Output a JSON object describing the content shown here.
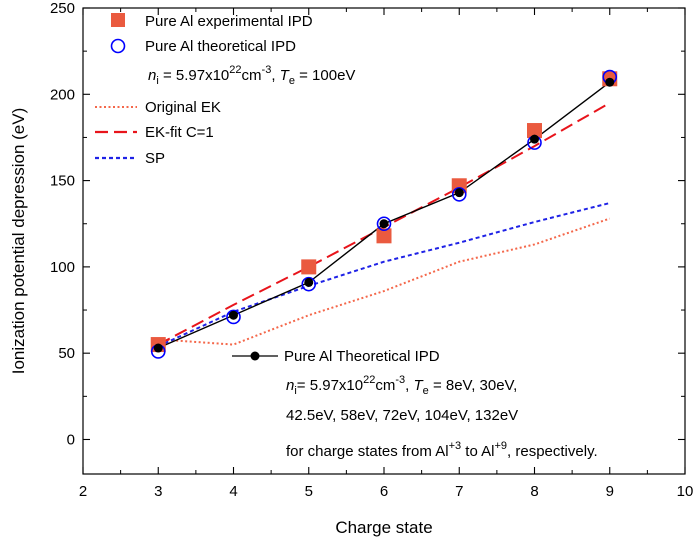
{
  "chart_data": {
    "type": "scatter",
    "title": "",
    "xlabel": "Charge state",
    "ylabel": "Ionization potential depression (eV)",
    "xlim": [
      2,
      10
    ],
    "ylim": [
      -20,
      250
    ],
    "xticks": [
      2,
      3,
      4,
      5,
      6,
      7,
      8,
      9,
      10
    ],
    "yticks": [
      0,
      50,
      100,
      150,
      200,
      250
    ],
    "grid": false,
    "legend_position": "top-left",
    "series": [
      {
        "name": "Pure Al experimental IPD",
        "kind": "marker",
        "marker": "square",
        "color": "#ea5a3f",
        "x": [
          3,
          5,
          6,
          7,
          8,
          9
        ],
        "y": [
          55,
          100,
          118,
          147,
          179,
          209
        ]
      },
      {
        "name": "Pure Al theoretical IPD",
        "kind": "marker",
        "marker": "open-circle",
        "color": "#0000ff",
        "x": [
          3,
          4,
          5,
          6,
          7,
          8,
          9
        ],
        "y": [
          51,
          71,
          90,
          125,
          142,
          172,
          210
        ]
      },
      {
        "name": "Original EK",
        "kind": "line",
        "style": "dotted",
        "color": "#f4674a",
        "x": [
          3,
          4,
          5,
          6,
          7,
          8,
          9
        ],
        "y": [
          58,
          55,
          72,
          86,
          103,
          113,
          128
        ]
      },
      {
        "name": "EK-fit C=1",
        "kind": "line",
        "style": "dashed",
        "color": "#e8141b",
        "x": [
          3,
          4,
          5,
          6,
          7,
          8,
          9
        ],
        "y": [
          55,
          78,
          100,
          123,
          146,
          170,
          195
        ]
      },
      {
        "name": "SP",
        "kind": "line",
        "style": "short-dash",
        "color": "#1f22e6",
        "x": [
          3,
          4,
          5,
          6,
          7,
          8,
          9
        ],
        "y": [
          54,
          74,
          89,
          103,
          114,
          126,
          137
        ]
      },
      {
        "name": "Pure Al Theoretical IPD",
        "kind": "line-marker",
        "marker": "filled-circle",
        "color": "#000000",
        "x": [
          3,
          4,
          5,
          6,
          7,
          8,
          9
        ],
        "y": [
          53,
          72,
          91,
          125,
          143,
          174,
          207
        ]
      }
    ],
    "annotations": {
      "top_params": {
        "n_sym": "n",
        "n_sub": "i",
        "n_val": " = 5.97x10",
        "n_exp": "22",
        "n_unit": "cm",
        "n_unit_exp": "-3",
        "sep": ",  ",
        "t_sym": "T",
        "t_sub": "e",
        "t_val": " = 100eV"
      },
      "bottom_params": {
        "n_sym": "n",
        "n_sub": "i",
        "n_val": "= 5.97x10",
        "n_exp": "22",
        "n_unit": "cm",
        "n_unit_exp": "-3",
        "sep": ",  ",
        "t_sym": "T",
        "t_sub": "e",
        "t_val": " = 8eV, 30eV,",
        "line2": "42.5eV, 58eV, 72eV, 104eV, 132eV",
        "line3_a": "for charge states from Al",
        "line3_exp1": "+3",
        "line3_b": " to Al",
        "line3_exp2": "+9",
        "line3_c": ", respectively."
      }
    }
  }
}
